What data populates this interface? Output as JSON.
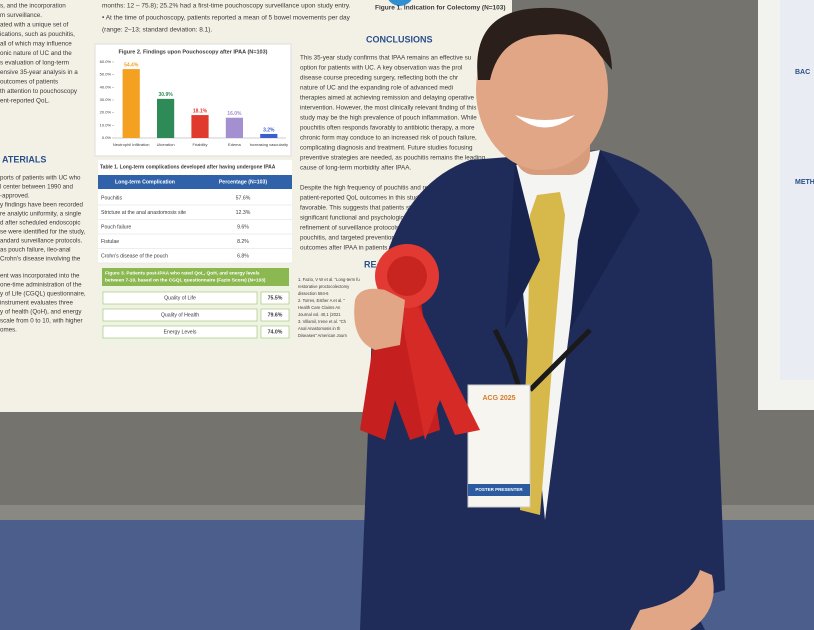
{
  "poster": {
    "intro_lines": [
      "months: 12 – 75.8); 25.2% had a first-time pouchoscopy surveillance upon study entry.",
      "• At the time of pouchoscopy, patients reported a mean of 5 bowel movements per day",
      "(range: 2–13; standard deviation: 8.1)."
    ],
    "left_lines": [
      "s, and the incorporation",
      "m surveillance.",
      "ated with a unique set of",
      "ications, such as pouchitis,",
      "all of which may influence",
      "onic nature of UC and the",
      "s evaluation of long-term",
      "ensive 35-year analysis in a",
      "outcomes of patients",
      "th attention to pouchoscopy",
      "ent-reported QoL."
    ],
    "materials_heading": "ATERIALS",
    "materials_lines": [
      "ports of patients with UC who",
      "l center between 1990 and",
      "-approved.",
      "y findings have been recorded",
      "re analytic uniformity, a single",
      "d after scheduled endoscopic",
      "se were identified for the study,",
      "andard surveillance protocols.",
      "as pouch failure, ileo-anal",
      "Crohn's disease involving the",
      "ent was incorporated into the",
      "one-time administration of the",
      "y of Life (CGQL) questionnaire,",
      "instrument evaluates three",
      "y of health (QoH), and energy",
      "scale from 0 to 10, with higher",
      "omes."
    ],
    "figure1_caption": "Figure 1. Indication for Colectomy (N=103)",
    "figure2": {
      "type": "bar",
      "title": "Figure 2. Findings upon Pouchoscopy after IPAA (N=103)",
      "categories": [
        "Neutrophil Infiltration",
        "Ulceration",
        "Friability",
        "Edema",
        "Increasing vascularity"
      ],
      "values": [
        54.4,
        30.9,
        18.1,
        16.0,
        3.2
      ],
      "value_labels": [
        "54.4%",
        "30.9%",
        "18.1%",
        "16.0%",
        "3.2%"
      ],
      "colors": [
        "#f4a020",
        "#2e8b57",
        "#e03a2f",
        "#a48fd0",
        "#3a5fcd"
      ],
      "ylim": [
        0,
        60
      ],
      "yticks": [
        {
          "value": 0,
          "label": "0.0%"
        },
        {
          "value": 10,
          "label": "10.0%"
        },
        {
          "value": 20,
          "label": "20.0%"
        },
        {
          "value": 30,
          "label": "30.0%"
        },
        {
          "value": 40,
          "label": "40.0%"
        },
        {
          "value": 50,
          "label": "50.0%"
        },
        {
          "value": 60,
          "label": "60.0%"
        }
      ]
    },
    "table1": {
      "caption": "Table 1. Long-term complications developed after having undergone IPAA",
      "header": [
        "Long-term Complication",
        "Percentage (N=103)"
      ],
      "rows": [
        [
          "Pouchitis",
          "57.6%"
        ],
        [
          "Stricture at the anal anastomosis site",
          "12.3%"
        ],
        [
          "Pouch failure",
          "9.6%"
        ],
        [
          "Fistulae",
          "8.2%"
        ],
        [
          "Crohn's disease of the pouch",
          "6.8%"
        ]
      ]
    },
    "figure3": {
      "caption_lines": [
        "Figure 3. Patients post-IPAA who rated QoL, QoH, and energy levels",
        "between 7-10, based on the CGQL questionnaire (Fazio Score) (N=103)"
      ],
      "rows": [
        [
          "Quality of Life",
          "75.5%"
        ],
        [
          "Quality of Health",
          "79.6%"
        ],
        [
          "Energy Levels",
          "74.0%"
        ]
      ]
    },
    "conclusions": {
      "heading": "CONCLUSIONS",
      "lines": [
        "This 35-year study confirms that IPAA remains an effective su",
        "option for patients with UC. A key observation was the prol",
        "disease course preceding surgery, reflecting both the chr",
        "nature of UC and the expanding role of advanced medi",
        "therapies aimed at achieving remission and delaying operative",
        "intervention. However, the most clinically relevant finding of this",
        "study may be the high prevalence of pouch inflammation. While",
        "pouchitis often responds favorably to antibiotic therapy, a more",
        "chronic form may conduce to an increased risk of pouch failure,",
        "complicating diagnosis and treatment. Future studies focusing",
        "preventive strategies are needed, as pouchitis remains the leading",
        "cause of long-term morbidity after IPAA."
      ],
      "lines2": [
        "Despite the high frequency of pouchitis and related complica",
        "patient-reported QoL outcomes in this study were",
        "favorable. This suggests that patients still perce",
        "significant functional and psychological adva",
        "refinement of surveillance protocols, bette",
        "pouchitis, and targeted prevention are key to i",
        "outcomes after IPAA in patients with UC."
      ]
    },
    "references": {
      "heading": "RE",
      "lines": [
        "1. Fazio, V W et al. \"Long-term fu",
        "restorative proctocolectomy",
        "dissection 584-6",
        "2. Torres, Esther A et al. \"",
        "Health Care Claims An",
        "Journal vol. 40,1 (2021",
        "3. Villamil, Irene et al. \"Ch",
        "Anal Anastomosis in th",
        "Diseases\" American Journ"
      ]
    }
  },
  "right_poster": {
    "headings": [
      "BAC",
      "METH"
    ]
  },
  "badge": {
    "event": "ACG 2025",
    "role": "POSTER PRESENTER"
  }
}
